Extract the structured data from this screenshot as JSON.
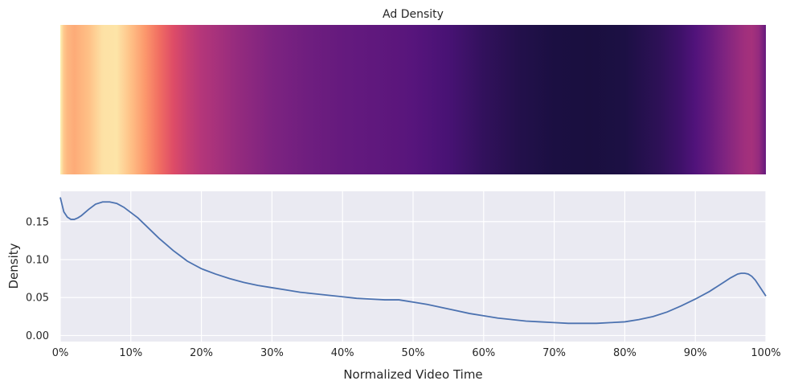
{
  "chart_data": [
    {
      "type": "heatmap",
      "title": "Ad Density",
      "colormap": "magma",
      "x_range": [
        0,
        1
      ],
      "values_x": [
        0.0,
        0.005,
        0.01,
        0.02,
        0.04,
        0.06,
        0.08,
        0.1,
        0.12,
        0.14,
        0.16,
        0.18,
        0.2,
        0.25,
        0.3,
        0.35,
        0.4,
        0.45,
        0.48,
        0.5,
        0.55,
        0.6,
        0.65,
        0.7,
        0.75,
        0.8,
        0.85,
        0.88,
        0.9,
        0.92,
        0.94,
        0.96,
        0.97,
        0.98,
        0.99,
        1.0
      ],
      "values": [
        0.182,
        0.165,
        0.158,
        0.153,
        0.162,
        0.175,
        0.176,
        0.162,
        0.145,
        0.127,
        0.111,
        0.098,
        0.089,
        0.075,
        0.064,
        0.057,
        0.052,
        0.049,
        0.047,
        0.045,
        0.038,
        0.028,
        0.021,
        0.017,
        0.016,
        0.018,
        0.026,
        0.034,
        0.042,
        0.052,
        0.064,
        0.075,
        0.08,
        0.082,
        0.075,
        0.052
      ]
    },
    {
      "type": "line",
      "xlabel": "Normalized Video Time",
      "ylabel": "Density",
      "xlim": [
        0,
        1
      ],
      "ylim": [
        -0.008,
        0.19
      ],
      "x_ticks": [
        0,
        0.1,
        0.2,
        0.3,
        0.4,
        0.5,
        0.6,
        0.7,
        0.8,
        0.9,
        1.0
      ],
      "x_tick_labels": [
        "0%",
        "10%",
        "20%",
        "30%",
        "40%",
        "50%",
        "60%",
        "70%",
        "80%",
        "90%",
        "100%"
      ],
      "y_ticks": [
        0.0,
        0.05,
        0.1,
        0.15
      ],
      "y_tick_labels": [
        "0.00",
        "0.05",
        "0.10",
        "0.15"
      ],
      "grid": true,
      "background": "#eaeaf2",
      "line_color": "#4c72b0",
      "series": [
        {
          "x": [
            0.0,
            0.005,
            0.01,
            0.015,
            0.02,
            0.025,
            0.03,
            0.04,
            0.05,
            0.06,
            0.07,
            0.08,
            0.09,
            0.1,
            0.11,
            0.12,
            0.13,
            0.14,
            0.15,
            0.16,
            0.17,
            0.18,
            0.19,
            0.2,
            0.22,
            0.24,
            0.26,
            0.28,
            0.3,
            0.32,
            0.34,
            0.36,
            0.38,
            0.4,
            0.42,
            0.44,
            0.46,
            0.48,
            0.5,
            0.52,
            0.54,
            0.56,
            0.58,
            0.6,
            0.62,
            0.64,
            0.66,
            0.68,
            0.7,
            0.72,
            0.74,
            0.76,
            0.78,
            0.8,
            0.82,
            0.84,
            0.86,
            0.88,
            0.9,
            0.92,
            0.94,
            0.95,
            0.96,
            0.965,
            0.97,
            0.975,
            0.98,
            0.985,
            0.99,
            0.995,
            1.0
          ],
          "y": [
            0.182,
            0.163,
            0.156,
            0.153,
            0.153,
            0.155,
            0.158,
            0.166,
            0.173,
            0.176,
            0.176,
            0.174,
            0.169,
            0.162,
            0.155,
            0.146,
            0.137,
            0.128,
            0.12,
            0.112,
            0.105,
            0.098,
            0.093,
            0.088,
            0.081,
            0.075,
            0.07,
            0.066,
            0.063,
            0.06,
            0.057,
            0.055,
            0.053,
            0.051,
            0.049,
            0.048,
            0.047,
            0.047,
            0.044,
            0.041,
            0.037,
            0.033,
            0.029,
            0.026,
            0.023,
            0.021,
            0.019,
            0.018,
            0.017,
            0.016,
            0.016,
            0.016,
            0.017,
            0.018,
            0.021,
            0.025,
            0.031,
            0.039,
            0.048,
            0.058,
            0.07,
            0.076,
            0.081,
            0.082,
            0.082,
            0.081,
            0.078,
            0.073,
            0.066,
            0.059,
            0.052
          ]
        }
      ]
    }
  ]
}
